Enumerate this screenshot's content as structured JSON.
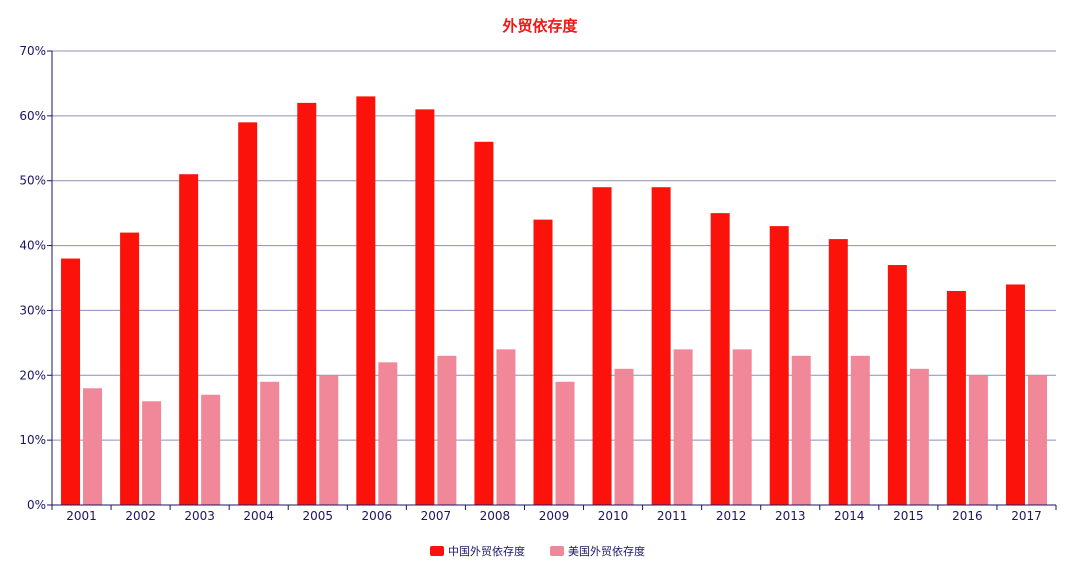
{
  "chart_data": {
    "type": "bar",
    "title": "外贸依存度",
    "xlabel": "",
    "ylabel": "",
    "categories": [
      "2001",
      "2002",
      "2003",
      "2004",
      "2005",
      "2006",
      "2007",
      "2008",
      "2009",
      "2010",
      "2011",
      "2012",
      "2013",
      "2014",
      "2015",
      "2016",
      "2017"
    ],
    "series": [
      {
        "name": "中国外贸依存度",
        "color": "#fb130b",
        "values": [
          38,
          42,
          51,
          59,
          62,
          63,
          61,
          56,
          44,
          49,
          49,
          45,
          43,
          41,
          37,
          33,
          34
        ]
      },
      {
        "name": "美国外贸依存度",
        "color": "#f0889a",
        "values": [
          18,
          16,
          17,
          19,
          20,
          22,
          23,
          24,
          19,
          21,
          24,
          24,
          23,
          23,
          21,
          20,
          20
        ]
      }
    ],
    "ylim": [
      0,
      70
    ],
    "yticks": [
      0,
      10,
      20,
      30,
      40,
      50,
      60,
      70
    ],
    "ytick_suffix": "%",
    "grid": true,
    "legend_position": "bottom-center",
    "gridline_color": "#8c8fb4",
    "axis_text_color": "#1b1464"
  }
}
